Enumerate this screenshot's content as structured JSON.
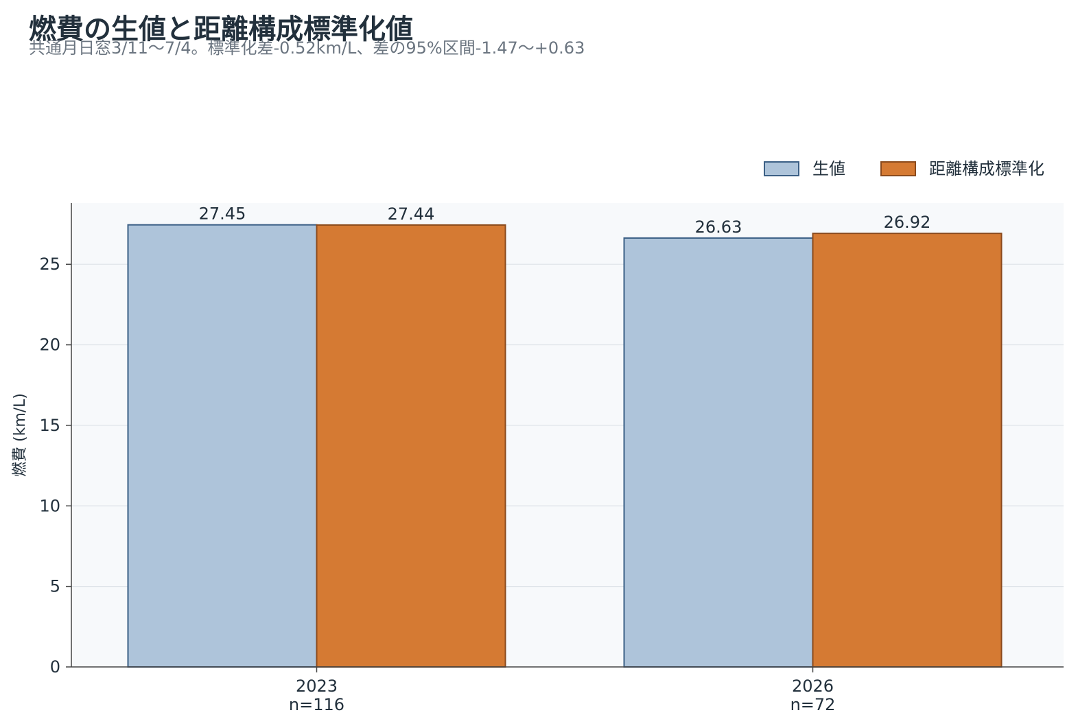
{
  "chart_data": {
    "type": "bar",
    "title": "燃費の生値と距離構成標準化値",
    "subtitle": "共通月日窓3/11〜7/4。標準化差-0.52km/L、差の95%区間-1.47〜+0.63",
    "ylabel": "燃費 (km/L)",
    "xlabel": "",
    "categories": [
      "2023",
      "2026"
    ],
    "category_sublabels": [
      "n=116",
      "n=72"
    ],
    "series": [
      {
        "name": "生値",
        "values": [
          27.45,
          26.63
        ],
        "color": "#aec4da",
        "stroke": "#3b5f85"
      },
      {
        "name": "距離構成標準化",
        "values": [
          27.44,
          26.92
        ],
        "color": "#d57a33",
        "stroke": "#8b4a1c"
      }
    ],
    "value_labels": [
      [
        "27.45",
        "26.63"
      ],
      [
        "27.44",
        "26.92"
      ]
    ],
    "ylim": [
      0,
      28.8
    ],
    "yticks": [
      0,
      5,
      10,
      15,
      20,
      25
    ],
    "grid": true,
    "legend_position": "top-right"
  }
}
